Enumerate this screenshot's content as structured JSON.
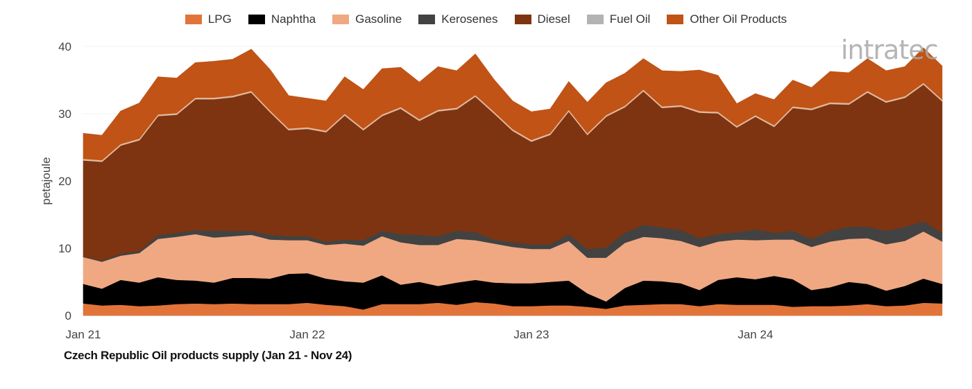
{
  "chart_data": {
    "type": "area",
    "stacked": true,
    "title": "Czech Republic Oil products supply (Jan 21 - Nov 24)",
    "xlabel": "",
    "ylabel": "petajoule",
    "ylim": [
      0,
      40
    ],
    "y_ticks": [
      "0",
      "10",
      "20",
      "30",
      "40"
    ],
    "x_start": "Jan 21",
    "x_end": "Nov 24",
    "x_ticks": [
      {
        "label": "Jan 21",
        "index": 0
      },
      {
        "label": "Jan 22",
        "index": 12
      },
      {
        "label": "Jan 23",
        "index": 24
      },
      {
        "label": "Jan 24",
        "index": 36
      }
    ],
    "grid": true,
    "legend_position": "top",
    "series": [
      {
        "name": "LPG",
        "color": "#e2743a",
        "values": [
          1.8,
          1.5,
          1.6,
          1.4,
          1.5,
          1.7,
          1.8,
          1.7,
          1.8,
          1.7,
          1.7,
          1.7,
          1.9,
          1.6,
          1.4,
          0.9,
          1.7,
          1.7,
          1.7,
          1.9,
          1.6,
          2.0,
          1.8,
          1.4,
          1.4,
          1.5,
          1.5,
          1.3,
          1.0,
          1.5,
          1.6,
          1.7,
          1.7,
          1.4,
          1.7,
          1.6,
          1.6,
          1.6,
          1.3,
          1.4,
          1.4,
          1.5,
          1.7,
          1.4,
          1.5,
          1.9,
          1.8
        ]
      },
      {
        "name": "Naphtha",
        "color": "#000000",
        "values": [
          2.9,
          2.5,
          3.7,
          3.5,
          4.2,
          3.6,
          3.4,
          3.2,
          3.8,
          3.9,
          3.8,
          4.5,
          4.4,
          3.9,
          3.7,
          4.0,
          4.3,
          2.9,
          3.3,
          2.5,
          3.3,
          3.3,
          3.1,
          3.4,
          3.4,
          3.5,
          3.7,
          2.0,
          1.1,
          2.6,
          3.6,
          3.4,
          3.1,
          2.4,
          3.6,
          4.1,
          3.8,
          4.3,
          4.1,
          2.4,
          2.8,
          3.5,
          3.0,
          2.3,
          2.9,
          3.6,
          2.9
        ]
      },
      {
        "name": "Gasoline",
        "color": "#f0a882",
        "values": [
          4.0,
          4.0,
          3.6,
          4.4,
          5.7,
          6.4,
          6.9,
          6.7,
          6.2,
          6.4,
          5.8,
          5.0,
          4.9,
          5.0,
          5.6,
          5.5,
          5.8,
          6.3,
          5.5,
          6.1,
          6.5,
          5.9,
          5.8,
          5.4,
          5.1,
          4.9,
          5.9,
          5.3,
          6.5,
          6.7,
          6.5,
          6.4,
          6.3,
          6.4,
          5.7,
          5.6,
          5.8,
          5.4,
          5.9,
          6.4,
          6.8,
          6.4,
          6.8,
          6.9,
          6.7,
          7.0,
          6.3
        ]
      },
      {
        "name": "Kerosenes",
        "color": "#424242",
        "values": [
          0.1,
          0.2,
          0.3,
          0.3,
          0.6,
          0.6,
          0.6,
          1.0,
          0.8,
          0.6,
          0.7,
          0.6,
          0.6,
          0.5,
          0.6,
          0.8,
          0.8,
          1.2,
          1.5,
          1.3,
          1.2,
          1.2,
          0.6,
          0.7,
          0.7,
          0.7,
          1.0,
          1.3,
          1.5,
          1.5,
          1.8,
          1.6,
          1.6,
          1.3,
          1.1,
          1.1,
          1.6,
          1.0,
          1.3,
          1.2,
          1.6,
          1.8,
          1.7,
          2.0,
          2.1,
          1.5,
          1.3
        ]
      },
      {
        "name": "Diesel",
        "color": "#7e3410",
        "values": [
          14.3,
          14.7,
          16.1,
          16.5,
          17.7,
          17.6,
          19.5,
          19.6,
          19.9,
          20.6,
          18.3,
          15.8,
          16.0,
          16.3,
          18.5,
          16.4,
          17.1,
          18.7,
          17.0,
          18.6,
          18.1,
          20.2,
          18.8,
          16.6,
          15.3,
          16.3,
          18.3,
          17.0,
          19.5,
          18.7,
          19.9,
          17.8,
          18.4,
          18.7,
          18.0,
          15.6,
          16.8,
          15.8,
          18.3,
          19.2,
          18.9,
          18.2,
          20.0,
          19.1,
          19.2,
          20.4,
          19.6
        ]
      },
      {
        "name": "Fuel Oil",
        "color": "#b3b3b3",
        "values": [
          0.2,
          0.2,
          0.2,
          0.2,
          0.2,
          0.2,
          0.2,
          0.2,
          0.2,
          0.2,
          0.2,
          0.2,
          0.2,
          0.2,
          0.2,
          0.2,
          0.2,
          0.2,
          0.2,
          0.2,
          0.2,
          0.2,
          0.2,
          0.2,
          0.2,
          0.2,
          0.2,
          0.2,
          0.2,
          0.2,
          0.2,
          0.2,
          0.2,
          0.2,
          0.2,
          0.2,
          0.2,
          0.2,
          0.2,
          0.2,
          0.2,
          0.2,
          0.2,
          0.2,
          0.2,
          0.2,
          0.2
        ]
      },
      {
        "name": "Other Oil Products",
        "color": "#c05315",
        "values": [
          3.8,
          3.7,
          4.9,
          5.3,
          5.6,
          5.2,
          5.2,
          5.4,
          5.4,
          6.2,
          6.1,
          4.9,
          4.3,
          4.4,
          5.5,
          5.8,
          6.8,
          5.9,
          5.5,
          6.4,
          5.5,
          6.1,
          4.8,
          4.2,
          4.2,
          3.6,
          4.2,
          4.6,
          4.8,
          4.8,
          4.6,
          5.3,
          5.0,
          6.1,
          5.4,
          3.3,
          3.2,
          3.8,
          3.9,
          3.1,
          4.6,
          4.5,
          4.8,
          4.5,
          4.4,
          5.2,
          5.0
        ]
      }
    ]
  },
  "logo_text": "intratec"
}
